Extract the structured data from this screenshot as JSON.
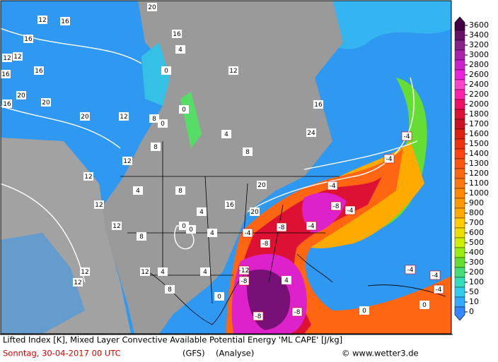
{
  "map": {
    "caption": {
      "line1": "Lifted Index [K], Mixed Layer Convective Available Potential Energy 'ML CAPE' [J/kg]",
      "date": "Sonntag, 30-04-2017  00 UTC",
      "model": "(GFS)",
      "run": "(Analyse)",
      "credit": "© www.wetter3.de"
    },
    "legend": {
      "levels": [
        3600,
        3400,
        3200,
        3000,
        2800,
        2600,
        2400,
        2200,
        2000,
        1800,
        1700,
        1600,
        1500,
        1400,
        1300,
        1200,
        1100,
        1000,
        900,
        800,
        700,
        600,
        500,
        400,
        300,
        200,
        100,
        50,
        10,
        0
      ],
      "colors": [
        "#440044",
        "#661166",
        "#882288",
        "#aa22aa",
        "#cc22cc",
        "#ee22dd",
        "#ff44cc",
        "#ff22aa",
        "#ee1166",
        "#dd1133",
        "#cc1122",
        "#dd2211",
        "#ee3311",
        "#ff4411",
        "#ff5511",
        "#ff6611",
        "#ff7711",
        "#ff8800",
        "#ff9900",
        "#ffaa00",
        "#ffcc00",
        "#eedd00",
        "#ccee00",
        "#99ee11",
        "#66dd33",
        "#44dd77",
        "#33ddbb",
        "#33ccee",
        "#33aaff",
        "#3388ff"
      ]
    },
    "contour_labels": [
      12,
      16,
      12,
      16,
      12,
      16,
      16,
      20,
      16,
      20,
      0,
      12,
      0,
      20,
      20,
      16,
      4,
      0,
      8,
      12,
      24,
      16,
      12,
      8,
      4,
      20,
      20,
      16,
      12,
      12,
      8,
      4,
      12,
      12,
      12,
      8,
      4,
      0,
      0,
      4,
      4,
      8,
      12,
      4,
      8,
      0,
      -4,
      -4,
      -4,
      -8,
      -4,
      -8,
      -8,
      -4,
      -4,
      -8,
      -12,
      -8,
      -8,
      -4,
      -4,
      -4,
      0,
      0,
      4
    ]
  }
}
